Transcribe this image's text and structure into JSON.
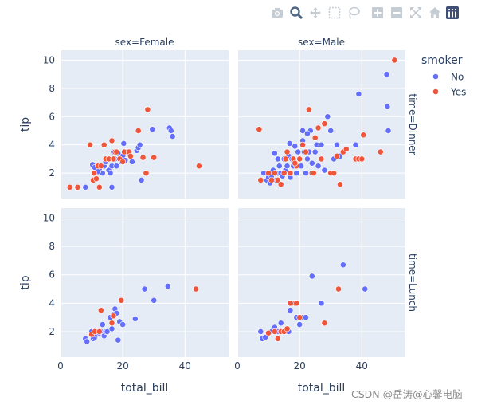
{
  "modebar": {
    "buttons": [
      {
        "icon": "camera-icon"
      },
      {
        "icon": "zoom-icon"
      },
      {
        "icon": "pan-icon"
      },
      {
        "icon": "box-select-icon"
      },
      {
        "icon": "lasso-select-icon"
      },
      {
        "icon": "zoom-in-icon"
      },
      {
        "icon": "zoom-out-icon"
      },
      {
        "icon": "autoscale-icon"
      },
      {
        "icon": "reset-axes-icon"
      },
      {
        "icon": "plotly-logo-icon"
      }
    ]
  },
  "watermark": "CSDN @岳涛@心馨电脑",
  "colors": {
    "No": "#636efa",
    "Yes": "#ef553b",
    "panel": "#e5ecf6",
    "text": "#2a3f5f"
  },
  "chart_data": {
    "type": "scatter",
    "x_var": "total_bill",
    "y_var": "tip",
    "facet_col_var": "sex",
    "facet_row_var": "time",
    "col_labels": [
      "sex=Female",
      "sex=Male"
    ],
    "row_labels": [
      "time=Dinner",
      "time=Lunch"
    ],
    "xlabel": "total_bill",
    "ylabel": "tip",
    "xlim": [
      0,
      54
    ],
    "ylim": [
      0.2,
      10.7
    ],
    "xticks": [
      0,
      20,
      40
    ],
    "yticks": [
      2,
      4,
      6,
      8,
      10
    ],
    "legend": {
      "title": "smoker",
      "entries": [
        "No",
        "Yes"
      ],
      "position": "top-right"
    },
    "panels": [
      {
        "col": 0,
        "row": 0,
        "series": [
          {
            "name": "No",
            "points": [
              [
                8.0,
                1.0
              ],
              [
                10.3,
                2.6
              ],
              [
                11.0,
                2.4
              ],
              [
                12.5,
                2.2
              ],
              [
                13.5,
                2.0
              ],
              [
                14.0,
                2.5
              ],
              [
                14.5,
                2.8
              ],
              [
                15.0,
                3.0
              ],
              [
                15.5,
                2.2
              ],
              [
                16.0,
                2.0
              ],
              [
                16.5,
                2.5
              ],
              [
                17.0,
                3.5
              ],
              [
                17.5,
                3.0
              ],
              [
                18.0,
                2.5
              ],
              [
                18.5,
                3.4
              ],
              [
                19.0,
                3.0
              ],
              [
                19.5,
                2.8
              ],
              [
                20.0,
                3.2
              ],
              [
                20.3,
                4.1
              ],
              [
                20.8,
                2.9
              ],
              [
                21.0,
                3.5
              ],
              [
                22.0,
                3.3
              ],
              [
                23.0,
                2.8
              ],
              [
                24.5,
                3.6
              ],
              [
                25.0,
                3.8
              ],
              [
                25.5,
                4.0
              ],
              [
                26.0,
                1.5
              ],
              [
                29.5,
                5.1
              ],
              [
                35.0,
                5.2
              ],
              [
                35.5,
                5.0
              ],
              [
                36.0,
                4.6
              ],
              [
                16.5,
                1.0
              ],
              [
                12.0,
                2.1
              ]
            ]
          },
          {
            "name": "Yes",
            "points": [
              [
                3.0,
                1.0
              ],
              [
                5.5,
                1.0
              ],
              [
                9.5,
                4.0
              ],
              [
                10.5,
                1.5
              ],
              [
                10.8,
                2.0
              ],
              [
                11.5,
                1.6
              ],
              [
                12.0,
                2.5
              ],
              [
                12.5,
                1.0
              ],
              [
                13.0,
                2.5
              ],
              [
                14.0,
                4.0
              ],
              [
                14.5,
                3.0
              ],
              [
                15.5,
                3.0
              ],
              [
                16.5,
                4.3
              ],
              [
                17.0,
                3.0
              ],
              [
                17.5,
                3.5
              ],
              [
                18.0,
                3.5
              ],
              [
                19.0,
                3.0
              ],
              [
                20.0,
                2.8
              ],
              [
                20.5,
                3.5
              ],
              [
                22.0,
                3.5
              ],
              [
                22.5,
                3.2
              ],
              [
                25.0,
                5.0
              ],
              [
                26.5,
                3.1
              ],
              [
                27.5,
                2.0
              ],
              [
                28.0,
                6.5
              ],
              [
                30.0,
                3.1
              ],
              [
                44.5,
                2.5
              ]
            ]
          }
        ]
      },
      {
        "col": 1,
        "row": 0,
        "series": [
          {
            "name": "No",
            "points": [
              [
                8.5,
                2.0
              ],
              [
                9.5,
                1.5
              ],
              [
                10.0,
                1.7
              ],
              [
                10.5,
                1.3
              ],
              [
                11.0,
                1.8
              ],
              [
                11.5,
                2.2
              ],
              [
                12.0,
                3.4
              ],
              [
                12.5,
                1.5
              ],
              [
                13.0,
                2.0
              ],
              [
                13.5,
                2.5
              ],
              [
                14.0,
                2.0
              ],
              [
                14.5,
                1.8
              ],
              [
                15.0,
                3.0
              ],
              [
                15.5,
                2.2
              ],
              [
                16.0,
                2.5
              ],
              [
                16.5,
                3.2
              ],
              [
                17.0,
                1.7
              ],
              [
                17.5,
                3.0
              ],
              [
                18.0,
                2.5
              ],
              [
                18.5,
                3.9
              ],
              [
                19.0,
                2.0
              ],
              [
                19.5,
                3.5
              ],
              [
                20.0,
                3.0
              ],
              [
                20.5,
                2.5
              ],
              [
                21.0,
                4.3
              ],
              [
                21.5,
                3.5
              ],
              [
                22.0,
                2.0
              ],
              [
                22.5,
                3.0
              ],
              [
                23.0,
                3.5
              ],
              [
                23.5,
                5.0
              ],
              [
                24.0,
                2.7
              ],
              [
                25.0,
                3.5
              ],
              [
                25.5,
                4.0
              ],
              [
                26.0,
                2.5
              ],
              [
                27.0,
                4.0
              ],
              [
                28.0,
                2.2
              ],
              [
                29.0,
                6.0
              ],
              [
                30.0,
                5.0
              ],
              [
                31.0,
                3.0
              ],
              [
                32.0,
                4.0
              ],
              [
                33.0,
                3.2
              ],
              [
                38.0,
                4.0
              ],
              [
                39.0,
                7.6
              ],
              [
                48.0,
                9.0
              ],
              [
                48.2,
                6.7
              ],
              [
                48.5,
                5.0
              ],
              [
                21.0,
                5.0
              ],
              [
                22.5,
                4.8
              ],
              [
                16.8,
                4.1
              ],
              [
                13.0,
                3.0
              ]
            ]
          },
          {
            "name": "Yes",
            "points": [
              [
                7.0,
                5.1
              ],
              [
                7.5,
                1.5
              ],
              [
                10.0,
                2.0
              ],
              [
                11.0,
                1.5
              ],
              [
                12.0,
                2.0
              ],
              [
                13.0,
                1.5
              ],
              [
                14.0,
                1.2
              ],
              [
                15.0,
                2.0
              ],
              [
                15.5,
                3.0
              ],
              [
                16.0,
                3.5
              ],
              [
                17.0,
                2.0
              ],
              [
                18.0,
                3.0
              ],
              [
                19.0,
                2.5
              ],
              [
                20.0,
                3.0
              ],
              [
                21.0,
                4.0
              ],
              [
                22.0,
                3.5
              ],
              [
                23.0,
                6.5
              ],
              [
                24.0,
                2.0
              ],
              [
                25.0,
                4.5
              ],
              [
                26.0,
                5.2
              ],
              [
                27.0,
                3.0
              ],
              [
                28.0,
                5.5
              ],
              [
                30.0,
                2.0
              ],
              [
                31.0,
                2.0
              ],
              [
                32.0,
                3.2
              ],
              [
                33.0,
                1.2
              ],
              [
                34.0,
                3.5
              ],
              [
                35.0,
                3.7
              ],
              [
                38.0,
                3.0
              ],
              [
                39.0,
                3.0
              ],
              [
                40.0,
                3.0
              ],
              [
                46.0,
                3.5
              ],
              [
                50.5,
                10.0
              ],
              [
                40.5,
                4.7
              ],
              [
                24.5,
                2.0
              ],
              [
                18.5,
                2.7
              ]
            ]
          }
        ]
      },
      {
        "col": 0,
        "row": 1,
        "series": [
          {
            "name": "No",
            "points": [
              [
                8.0,
                1.5
              ],
              [
                8.5,
                1.3
              ],
              [
                10.0,
                2.0
              ],
              [
                10.5,
                1.5
              ],
              [
                11.0,
                1.6
              ],
              [
                11.5,
                1.8
              ],
              [
                12.0,
                2.0
              ],
              [
                12.5,
                1.9
              ],
              [
                13.0,
                2.0
              ],
              [
                13.5,
                2.5
              ],
              [
                14.0,
                1.7
              ],
              [
                14.5,
                2.0
              ],
              [
                15.0,
                2.0
              ],
              [
                16.0,
                3.0
              ],
              [
                16.5,
                2.2
              ],
              [
                17.0,
                3.2
              ],
              [
                17.5,
                3.6
              ],
              [
                18.0,
                3.3
              ],
              [
                18.5,
                1.4
              ],
              [
                19.0,
                2.7
              ],
              [
                20.0,
                2.5
              ],
              [
                24.0,
                2.9
              ],
              [
                27.0,
                5.0
              ],
              [
                30.0,
                4.2
              ],
              [
                34.5,
                5.2
              ]
            ]
          },
          {
            "name": "Yes",
            "points": [
              [
                10.0,
                1.8
              ],
              [
                11.0,
                2.0
              ],
              [
                12.5,
                2.0
              ],
              [
                13.0,
                3.5
              ],
              [
                16.5,
                2.6
              ],
              [
                17.0,
                3.1
              ],
              [
                19.5,
                4.2
              ],
              [
                43.5,
                5.0
              ]
            ]
          }
        ]
      },
      {
        "col": 1,
        "row": 1,
        "series": [
          {
            "name": "No",
            "points": [
              [
                7.5,
                2.0
              ],
              [
                8.0,
                1.5
              ],
              [
                9.0,
                1.6
              ],
              [
                10.0,
                1.9
              ],
              [
                11.0,
                2.0
              ],
              [
                12.0,
                2.3
              ],
              [
                13.0,
                2.0
              ],
              [
                14.0,
                2.6
              ],
              [
                15.0,
                2.0
              ],
              [
                16.0,
                2.0
              ],
              [
                17.0,
                3.5
              ],
              [
                18.0,
                4.0
              ],
              [
                19.0,
                3.0
              ],
              [
                20.0,
                2.5
              ],
              [
                21.0,
                3.0
              ],
              [
                22.0,
                3.0
              ],
              [
                24.0,
                5.9
              ],
              [
                27.0,
                4.0
              ],
              [
                34.0,
                6.7
              ],
              [
                41.0,
                5.0
              ],
              [
                16.5,
                2.0
              ]
            ]
          },
          {
            "name": "Yes",
            "points": [
              [
                10.0,
                1.9
              ],
              [
                12.0,
                2.0
              ],
              [
                13.0,
                1.5
              ],
              [
                14.0,
                2.0
              ],
              [
                15.0,
                2.0
              ],
              [
                16.0,
                2.2
              ],
              [
                17.0,
                4.0
              ],
              [
                18.5,
                4.0
              ],
              [
                19.0,
                4.0
              ],
              [
                20.0,
                3.0
              ],
              [
                28.0,
                2.6
              ],
              [
                32.5,
                5.0
              ]
            ]
          }
        ]
      }
    ]
  }
}
